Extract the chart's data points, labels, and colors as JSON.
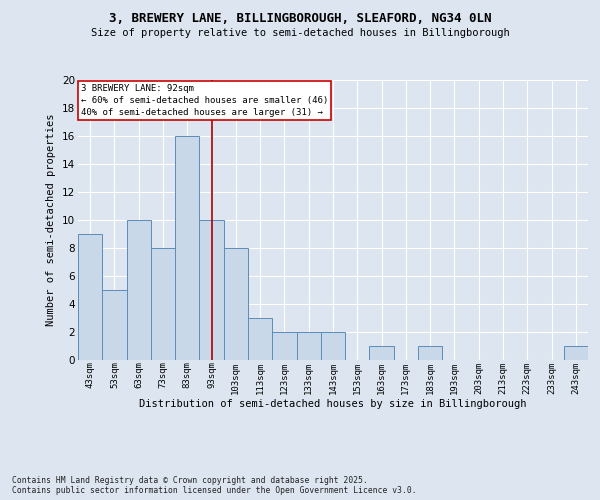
{
  "title1": "3, BREWERY LANE, BILLINGBOROUGH, SLEAFORD, NG34 0LN",
  "title2": "Size of property relative to semi-detached houses in Billingborough",
  "xlabel": "Distribution of semi-detached houses by size in Billingborough",
  "ylabel": "Number of semi-detached properties",
  "categories": [
    "43sqm",
    "53sqm",
    "63sqm",
    "73sqm",
    "83sqm",
    "93sqm",
    "103sqm",
    "113sqm",
    "123sqm",
    "133sqm",
    "143sqm",
    "153sqm",
    "163sqm",
    "173sqm",
    "183sqm",
    "193sqm",
    "203sqm",
    "213sqm",
    "223sqm",
    "233sqm",
    "243sqm"
  ],
  "values": [
    9,
    5,
    10,
    8,
    16,
    10,
    8,
    3,
    2,
    2,
    2,
    0,
    1,
    0,
    1,
    0,
    0,
    0,
    0,
    0,
    1
  ],
  "bar_color": "#c8d8e8",
  "bar_edge_color": "#5b8db8",
  "vline_x": 5,
  "vline_color": "#aa0000",
  "annotation_text": "3 BREWERY LANE: 92sqm\n← 60% of semi-detached houses are smaller (46)\n40% of semi-detached houses are larger (31) →",
  "annotation_box_color": "#ffffff",
  "annotation_box_edge": "#cc0000",
  "ylim": [
    0,
    20
  ],
  "yticks": [
    0,
    2,
    4,
    6,
    8,
    10,
    12,
    14,
    16,
    18,
    20
  ],
  "bg_color": "#dde6f0",
  "grid_color": "#ffffff",
  "footer": "Contains HM Land Registry data © Crown copyright and database right 2025.\nContains public sector information licensed under the Open Government Licence v3.0."
}
